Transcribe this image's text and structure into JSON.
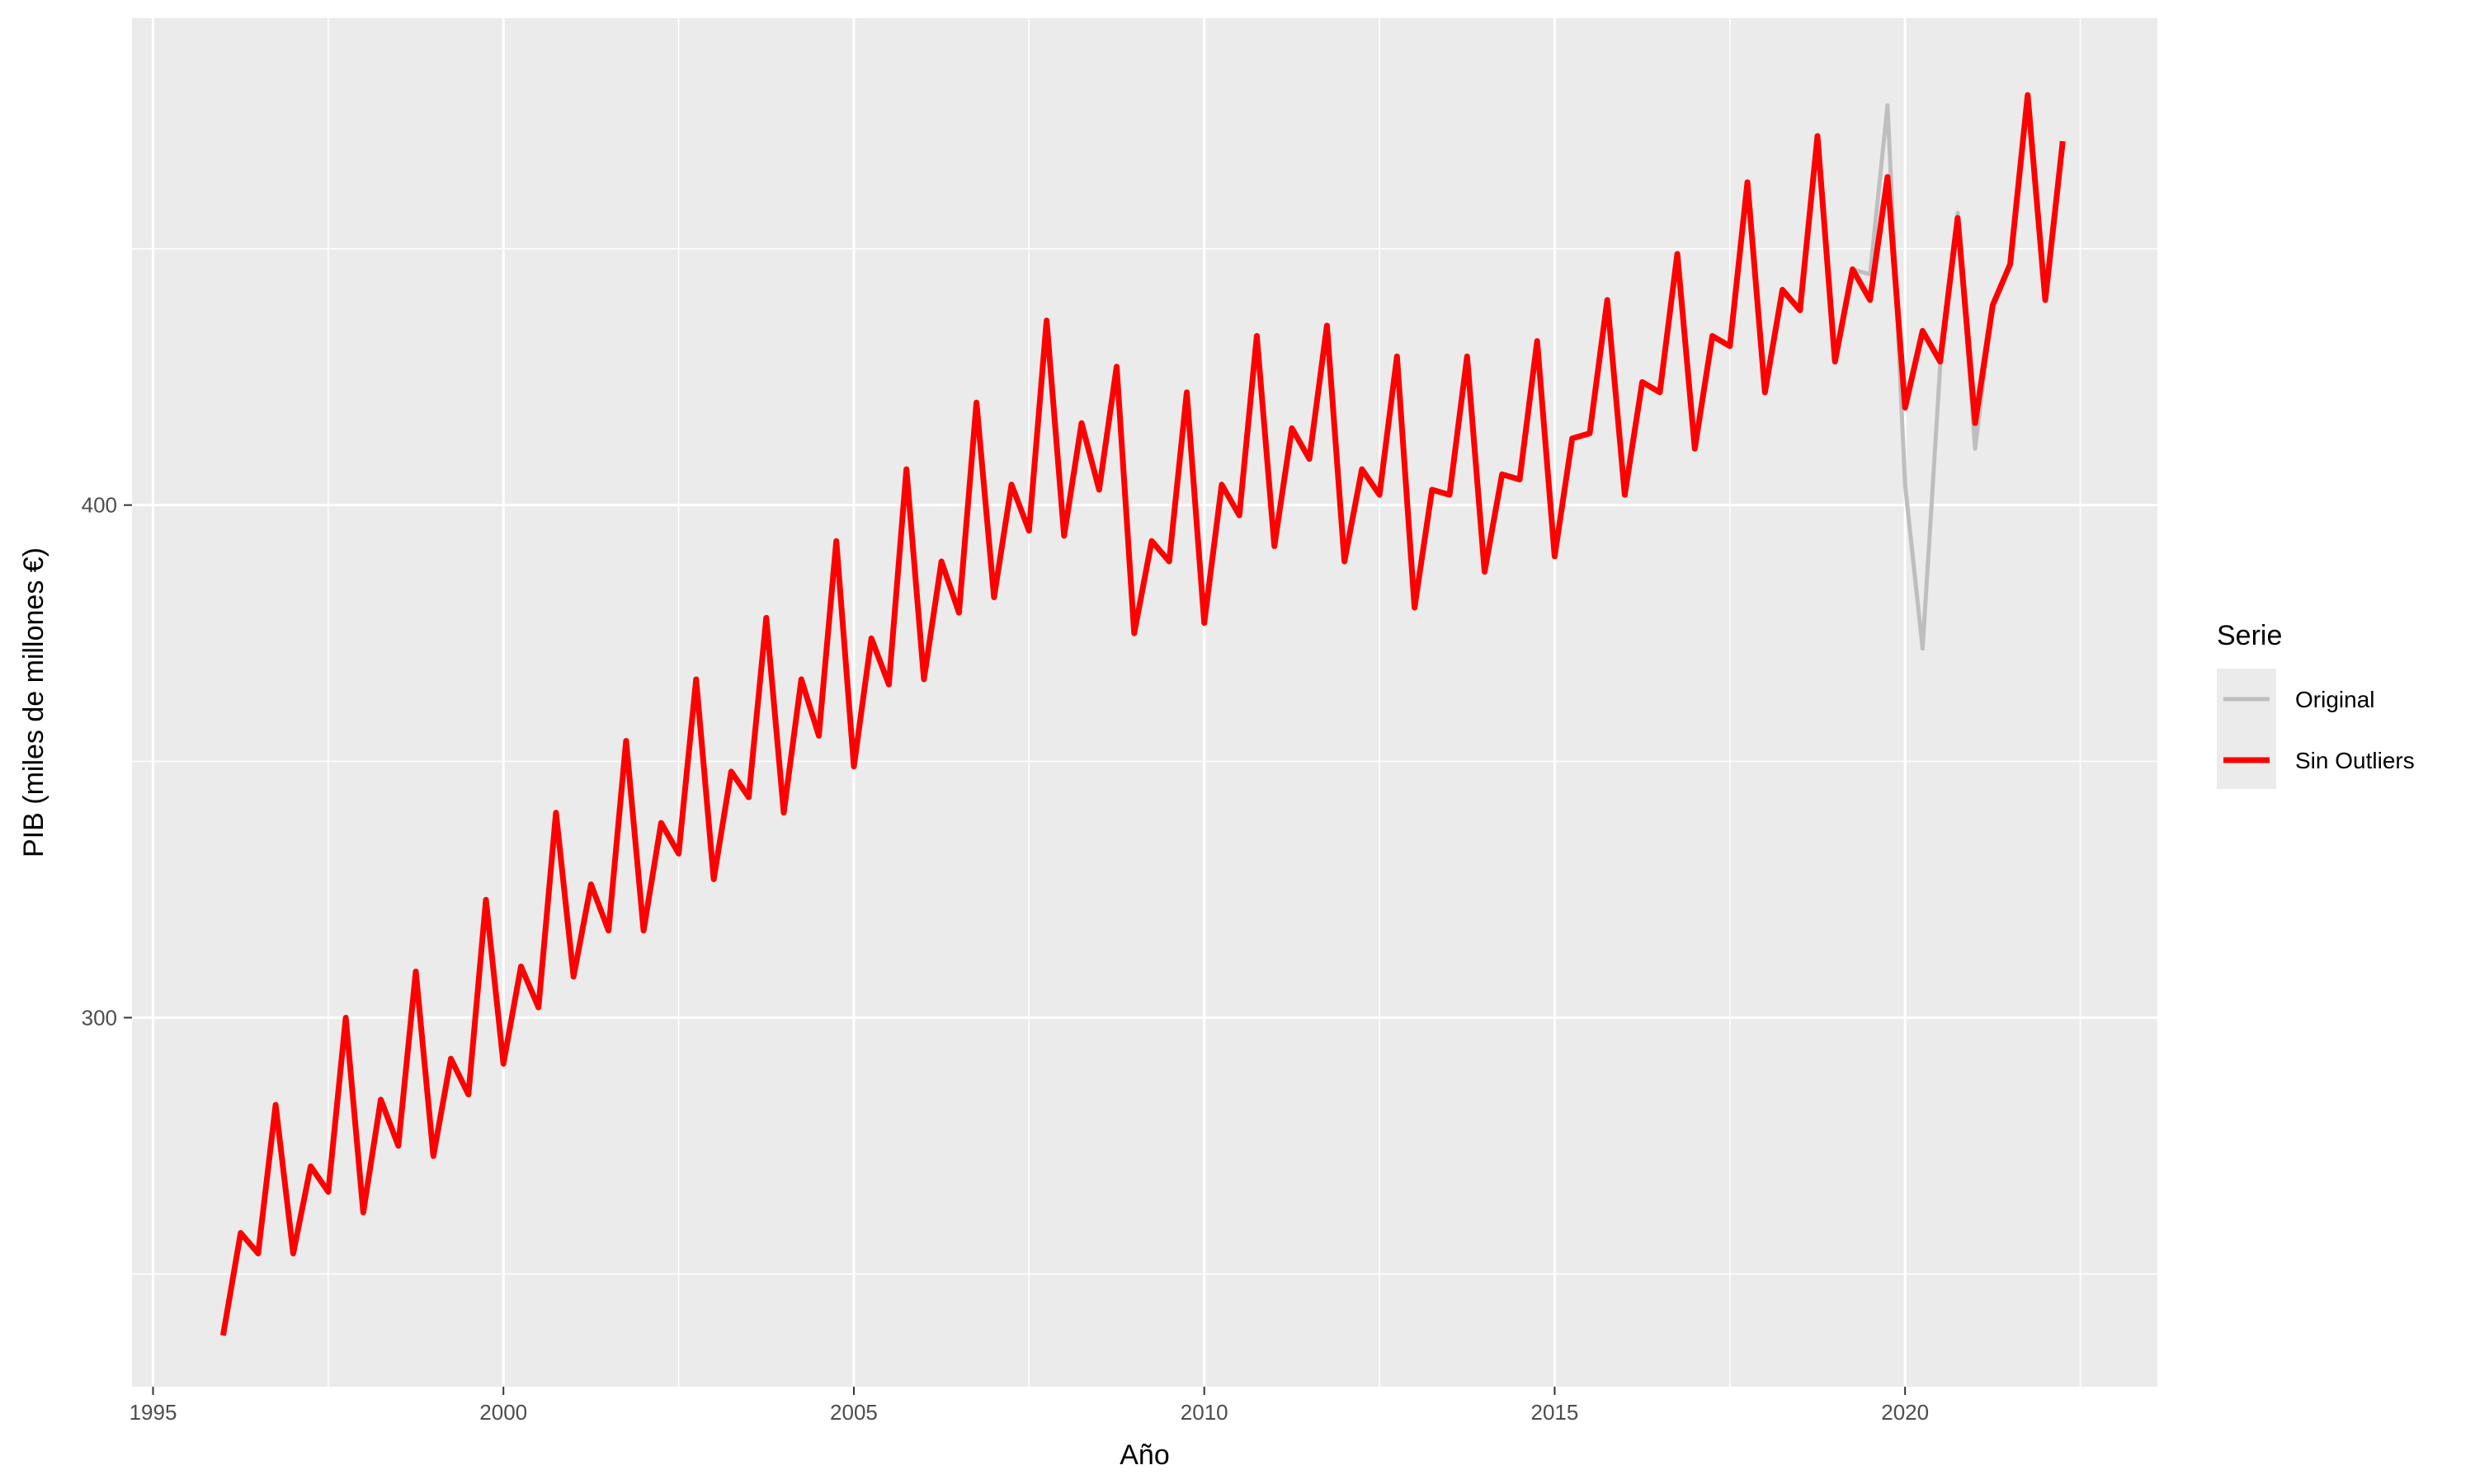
{
  "chart_data": {
    "type": "line",
    "title": "",
    "xlabel": "Año",
    "ylabel": "PIB (miles de millones €)",
    "xlim": [
      1994.7,
      2023.6
    ],
    "ylim": [
      228,
      495
    ],
    "x_ticks": [
      1995,
      2000,
      2005,
      2010,
      2015,
      2020
    ],
    "x_tick_labels": [
      "1995",
      "2000",
      "2005",
      "2010",
      "2015",
      "2020"
    ],
    "y_ticks": [
      300,
      400
    ],
    "y_tick_labels": [
      "300",
      "400"
    ],
    "grid": true,
    "legend_title": "Serie",
    "legend_position": "right",
    "colors": {
      "panel": "#ebebeb",
      "grid": "#ffffff",
      "original": "#bebebe",
      "sin_outliers": "#ff0000"
    },
    "x": [
      1996.0,
      1996.25,
      1996.5,
      1996.75,
      1997.0,
      1997.25,
      1997.5,
      1997.75,
      1998.0,
      1998.25,
      1998.5,
      1998.75,
      1999.0,
      1999.25,
      1999.5,
      1999.75,
      2000.0,
      2000.25,
      2000.5,
      2000.75,
      2001.0,
      2001.25,
      2001.5,
      2001.75,
      2002.0,
      2002.25,
      2002.5,
      2002.75,
      2003.0,
      2003.25,
      2003.5,
      2003.75,
      2004.0,
      2004.25,
      2004.5,
      2004.75,
      2005.0,
      2005.25,
      2005.5,
      2005.75,
      2006.0,
      2006.25,
      2006.5,
      2006.75,
      2007.0,
      2007.25,
      2007.5,
      2007.75,
      2008.0,
      2008.25,
      2008.5,
      2008.75,
      2009.0,
      2009.25,
      2009.5,
      2009.75,
      2010.0,
      2010.25,
      2010.5,
      2010.75,
      2011.0,
      2011.25,
      2011.5,
      2011.75,
      2012.0,
      2012.25,
      2012.5,
      2012.75,
      2013.0,
      2013.25,
      2013.5,
      2013.75,
      2014.0,
      2014.25,
      2014.5,
      2014.75,
      2015.0,
      2015.25,
      2015.5,
      2015.75,
      2016.0,
      2016.25,
      2016.5,
      2016.75,
      2017.0,
      2017.25,
      2017.5,
      2017.75,
      2018.0,
      2018.25,
      2018.5,
      2018.75,
      2019.0,
      2019.25,
      2019.5,
      2019.75,
      2020.0,
      2020.25,
      2020.5,
      2020.75,
      2021.0,
      2021.25,
      2021.5,
      2021.75,
      2022.0,
      2022.25
    ],
    "series": [
      {
        "name": "Original",
        "values": [
          238,
          258,
          254,
          283,
          254,
          271,
          266,
          300,
          262,
          284,
          275,
          309,
          273,
          292,
          285,
          323,
          291,
          310,
          302,
          340,
          308,
          326,
          317,
          354,
          317,
          338,
          332,
          366,
          327,
          348,
          343,
          378,
          340,
          366,
          355,
          393,
          349,
          374,
          365,
          407,
          366,
          389,
          379,
          420,
          382,
          404,
          395,
          436,
          394,
          416,
          403,
          427,
          375,
          393,
          389,
          422,
          377,
          404,
          398,
          433,
          392,
          415,
          409,
          435,
          389,
          407,
          402,
          429,
          380,
          403,
          402,
          429,
          387,
          406,
          405,
          432,
          390,
          413,
          414,
          440,
          402,
          424,
          422,
          449,
          411,
          433,
          431,
          463,
          422,
          442,
          438,
          472,
          428,
          446,
          445,
          478,
          404,
          372,
          427,
          457,
          411,
          439,
          447,
          480,
          440,
          471
        ]
      },
      {
        "name": "Sin Outliers",
        "values": [
          238,
          258,
          254,
          283,
          254,
          271,
          266,
          300,
          262,
          284,
          275,
          309,
          273,
          292,
          285,
          323,
          291,
          310,
          302,
          340,
          308,
          326,
          317,
          354,
          317,
          338,
          332,
          366,
          327,
          348,
          343,
          378,
          340,
          366,
          355,
          393,
          349,
          374,
          365,
          407,
          366,
          389,
          379,
          420,
          382,
          404,
          395,
          436,
          394,
          416,
          403,
          427,
          375,
          393,
          389,
          422,
          377,
          404,
          398,
          433,
          392,
          415,
          409,
          435,
          389,
          407,
          402,
          429,
          380,
          403,
          402,
          429,
          387,
          406,
          405,
          432,
          390,
          413,
          414,
          440,
          402,
          424,
          422,
          449,
          411,
          433,
          431,
          463,
          422,
          442,
          438,
          472,
          428,
          446,
          440,
          464,
          419,
          434,
          428,
          456,
          416,
          439,
          447,
          480,
          440,
          471
        ]
      }
    ]
  }
}
